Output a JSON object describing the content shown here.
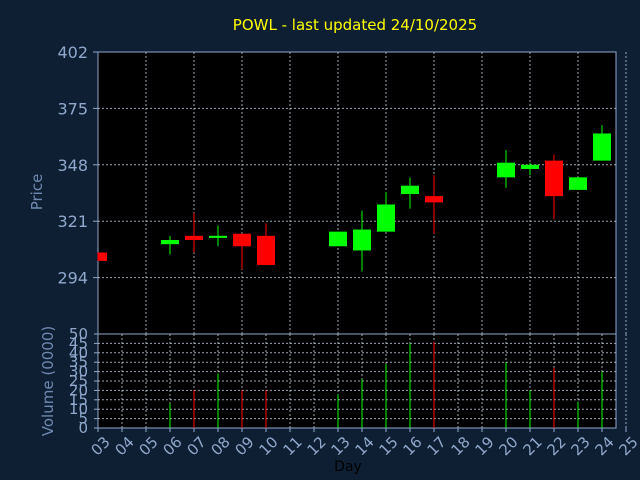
{
  "chart_data": [
    {
      "type": "candlestick",
      "title": "POWL - last updated 24/10/2025",
      "ylabel": "Price",
      "xlabel": "Day",
      "ylim": [
        267,
        402
      ],
      "yticks": [
        294,
        321,
        348,
        375,
        402
      ],
      "x_ticks": [
        "03",
        "04",
        "05",
        "06",
        "07",
        "08",
        "09",
        "10",
        "11",
        "12",
        "13",
        "14",
        "15",
        "16",
        "17",
        "18",
        "19",
        "20",
        "21",
        "22",
        "23",
        "24",
        "25"
      ],
      "grid": true,
      "up_color": "#00ff00",
      "down_color": "#ff0000",
      "candles": [
        {
          "day": "03",
          "open": 306,
          "high": 306,
          "low": 302,
          "close": 302
        },
        {
          "day": "06",
          "open": 310,
          "high": 314,
          "low": 305,
          "close": 312
        },
        {
          "day": "07",
          "open": 314,
          "high": 325,
          "low": 306,
          "close": 312
        },
        {
          "day": "08",
          "open": 313,
          "high": 319,
          "low": 309,
          "close": 314
        },
        {
          "day": "09",
          "open": 315,
          "high": 315,
          "low": 298,
          "close": 309
        },
        {
          "day": "10",
          "open": 314,
          "high": 320,
          "low": 300,
          "close": 300
        },
        {
          "day": "13",
          "open": 309,
          "high": 316,
          "low": 309,
          "close": 316
        },
        {
          "day": "14",
          "open": 307,
          "high": 326,
          "low": 297,
          "close": 317
        },
        {
          "day": "15",
          "open": 316,
          "high": 335,
          "low": 316,
          "close": 329
        },
        {
          "day": "16",
          "open": 334,
          "high": 342,
          "low": 327,
          "close": 338
        },
        {
          "day": "17",
          "open": 333,
          "high": 343,
          "low": 315,
          "close": 330
        },
        {
          "day": "20",
          "open": 342,
          "high": 355,
          "low": 337,
          "close": 349
        },
        {
          "day": "21",
          "open": 346,
          "high": 349,
          "low": 343,
          "close": 348
        },
        {
          "day": "22",
          "open": 350,
          "high": 353,
          "low": 322,
          "close": 333
        },
        {
          "day": "23",
          "open": 336,
          "high": 342,
          "low": 336,
          "close": 342
        },
        {
          "day": "24",
          "open": 350,
          "high": 367,
          "low": 350,
          "close": 363
        }
      ]
    },
    {
      "type": "bar",
      "ylabel": "Volume (0000)",
      "ylim": [
        0,
        50
      ],
      "yticks": [
        0,
        5,
        10,
        15,
        20,
        25,
        30,
        35,
        40,
        45,
        50
      ],
      "bars": [
        {
          "day": "06",
          "value": 13,
          "color": "#00ff00"
        },
        {
          "day": "07",
          "value": 20,
          "color": "#ff0000"
        },
        {
          "day": "08",
          "value": 29,
          "color": "#00ff00"
        },
        {
          "day": "09",
          "value": 20,
          "color": "#ff0000"
        },
        {
          "day": "10",
          "value": 20,
          "color": "#ff0000"
        },
        {
          "day": "13",
          "value": 18,
          "color": "#00ff00"
        },
        {
          "day": "14",
          "value": 26,
          "color": "#00ff00"
        },
        {
          "day": "15",
          "value": 34,
          "color": "#00ff00"
        },
        {
          "day": "16",
          "value": 45,
          "color": "#00ff00"
        },
        {
          "day": "17",
          "value": 46,
          "color": "#ff0000"
        },
        {
          "day": "20",
          "value": 35,
          "color": "#00ff00"
        },
        {
          "day": "21",
          "value": 20,
          "color": "#00ff00"
        },
        {
          "day": "22",
          "value": 32,
          "color": "#ff0000"
        },
        {
          "day": "23",
          "value": 14,
          "color": "#00ff00"
        },
        {
          "day": "24",
          "value": 30,
          "color": "#00ff00"
        }
      ]
    }
  ]
}
